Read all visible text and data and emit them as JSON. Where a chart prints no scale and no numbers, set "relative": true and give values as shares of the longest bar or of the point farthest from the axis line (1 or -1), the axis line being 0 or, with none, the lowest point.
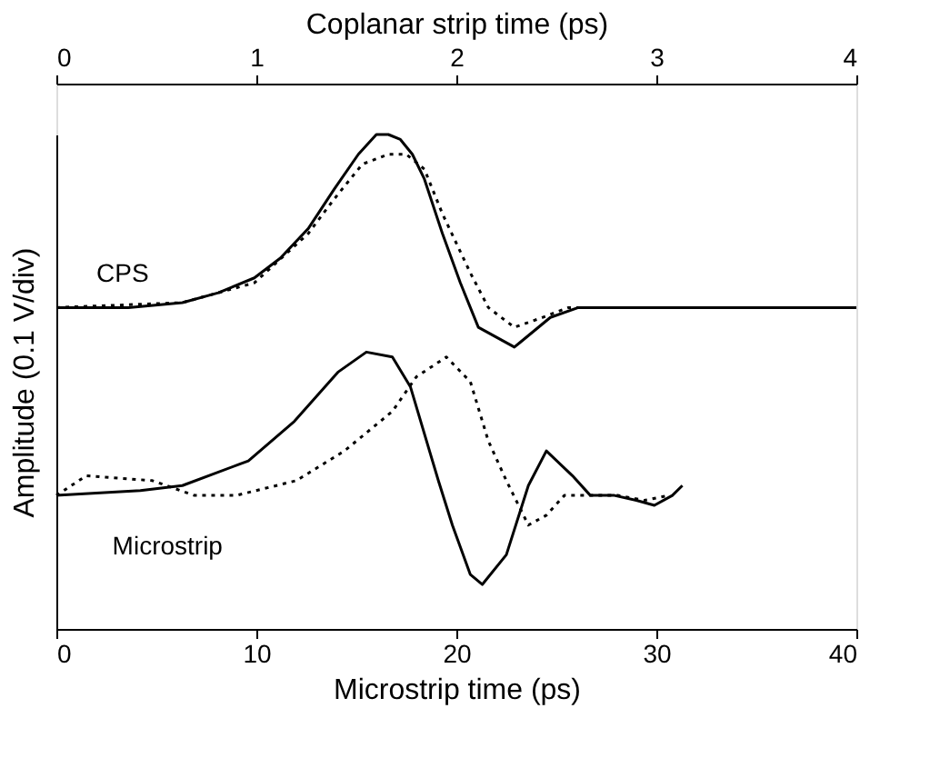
{
  "chart_data": {
    "type": "line",
    "relative": true,
    "xlabel": "Microstrip time (ps)",
    "x2label": "Coplanar strip time (ps)",
    "ylabel": "Amplitude (0.1 V/div)",
    "xlim": [
      0,
      40
    ],
    "xticks": [
      0,
      10,
      20,
      30,
      40
    ],
    "x2lim": [
      0,
      4
    ],
    "x2ticks": [
      0,
      1,
      2,
      3,
      4
    ],
    "grid": false,
    "marker": "none",
    "series": [
      {
        "axis": "x2",
        "color": "#000000",
        "line_style": "solid",
        "x": [
          0,
          0.36,
          0.63,
          0.81,
          0.99,
          1.12,
          1.26,
          1.39,
          1.51,
          1.6,
          1.66,
          1.72,
          1.78,
          1.84,
          1.93,
          2.02,
          2.11,
          2.29,
          2.32,
          2.47,
          2.61,
          4
        ],
        "values": [
          0.65,
          0.65,
          0.66,
          0.68,
          0.71,
          0.75,
          0.81,
          0.89,
          0.96,
          1.0,
          1.0,
          0.99,
          0.96,
          0.91,
          0.8,
          0.7,
          0.61,
          0.57,
          0.58,
          0.63,
          0.65,
          0.65
        ]
      },
      {
        "axis": "x2",
        "color": "#000000",
        "line_style": "dotted",
        "x": [
          0,
          0.63,
          0.99,
          1.26,
          1.39,
          1.53,
          1.66,
          1.75,
          1.84,
          1.93,
          2.07,
          2.16,
          2.29,
          2.43,
          2.56,
          4
        ],
        "values": [
          0.65,
          0.66,
          0.7,
          0.8,
          0.87,
          0.94,
          0.96,
          0.96,
          0.93,
          0.84,
          0.72,
          0.65,
          0.61,
          0.63,
          0.65,
          0.65
        ]
      },
      {
        "color": "#000000",
        "line_style": "solid",
        "x": [
          0,
          4.2,
          6.3,
          9.6,
          11.9,
          14.1,
          15.5,
          16.8,
          17.7,
          19.1,
          19.8,
          20.7,
          21.3,
          22.5,
          23.6,
          24.5,
          25.8,
          26.7,
          27.9,
          29.0,
          29.9,
          30.8,
          31.3
        ],
        "values": [
          0.27,
          0.28,
          0.29,
          0.34,
          0.42,
          0.52,
          0.56,
          0.55,
          0.49,
          0.3,
          0.21,
          0.11,
          0.09,
          0.15,
          0.29,
          0.36,
          0.31,
          0.27,
          0.27,
          0.26,
          0.25,
          0.27,
          0.29
        ]
      },
      {
        "color": "#000000",
        "line_style": "dotted",
        "x": [
          0,
          1.5,
          4.8,
          6.9,
          9.0,
          12.0,
          14.4,
          16.8,
          18.0,
          19.5,
          20.7,
          21.6,
          22.5,
          23.6,
          24.5,
          25.4,
          26.7,
          28.1,
          29.4,
          30.6
        ],
        "values": [
          0.27,
          0.31,
          0.3,
          0.27,
          0.27,
          0.3,
          0.36,
          0.44,
          0.51,
          0.55,
          0.5,
          0.38,
          0.3,
          0.21,
          0.23,
          0.27,
          0.27,
          0.27,
          0.26,
          0.27
        ]
      }
    ],
    "annotations": [
      "CPS",
      "Microstrip"
    ]
  }
}
